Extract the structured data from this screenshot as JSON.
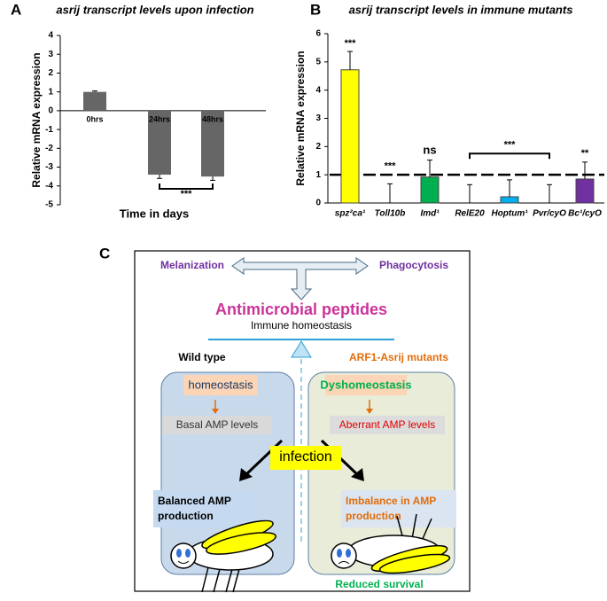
{
  "panel_labels": [
    "A",
    "B",
    "C"
  ],
  "chart_data": [
    {
      "type": "bar",
      "title": "asrij transcript levels upon infection",
      "x_label": "Time in days",
      "y_label": "Relative mRNA expression",
      "categories": [
        "0hrs",
        "24hrs",
        "48hrs"
      ],
      "values": [
        1,
        -3.4,
        -3.5
      ],
      "errors": [
        0.05,
        0.2,
        0.2
      ],
      "color": "#666666",
      "ylim": [
        -5,
        4
      ],
      "yticks": [
        -5,
        -4,
        -3,
        -2,
        -1,
        0,
        1,
        2,
        3,
        4
      ],
      "annotations": [
        "***"
      ]
    },
    {
      "type": "bar",
      "title": "asrij transcript levels in immune mutants",
      "y_label": "Relative mRNA expression",
      "categories": [
        "spz²ca¹",
        "Toll10b",
        "Imd¹",
        "RelE20",
        "Hoptum¹",
        "Pvr/cyO",
        "Bc¹/cyO"
      ],
      "values": [
        4.72,
        0,
        0.92,
        0,
        0.22,
        0,
        0.85
      ],
      "errors": [
        0.65,
        0.68,
        0.6,
        0.65,
        0.6,
        0.65,
        0.6
      ],
      "colors": [
        "#ffff00",
        "#ffffff",
        "#00b050",
        "#ffffff",
        "#00b0f0",
        "#ffffff",
        "#7030a0"
      ],
      "reference_line": 1,
      "ylim": [
        0,
        6
      ],
      "yticks": [
        0,
        1,
        2,
        3,
        4,
        5,
        6
      ],
      "annotations": [
        "***",
        "***",
        "ns",
        "***",
        "**"
      ]
    }
  ],
  "diagram": {
    "melanization": "Melanization",
    "phagocytosis": "Phagocytosis",
    "amp": "Antimicrobial peptides",
    "immune_homeostasis": "Immune homeostasis",
    "wild_type": "Wild type",
    "mutants": "ARF1-Asrij mutants",
    "homeostasis": "homeostasis",
    "basal": "Basal AMP levels",
    "dyshomeostasis": "Dyshomeostasis",
    "aberrant": "Aberrant AMP levels",
    "infection": "infection",
    "balanced": [
      "Balanced AMP",
      "production"
    ],
    "imbalance": [
      "Imbalance in AMP",
      "production"
    ],
    "reduced": "Reduced survival"
  }
}
